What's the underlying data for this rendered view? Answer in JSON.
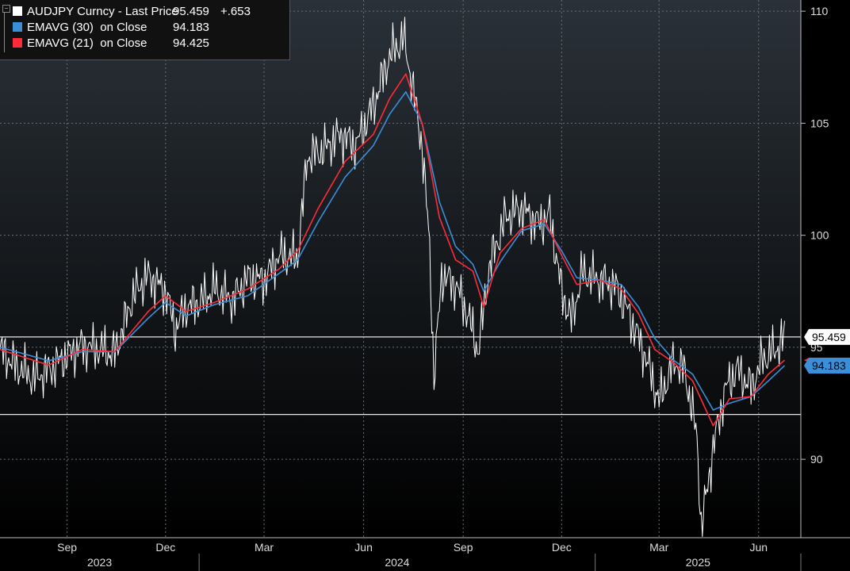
{
  "chart_data": {
    "type": "line",
    "series": [
      {
        "name": "AUDJPY Curncy - Last Price",
        "color": "#ffffff",
        "value_label": "95.459",
        "change_label": "+.653",
        "points": [
          [
            "2023-07-01",
            94.9
          ],
          [
            "2023-07-15",
            94.2
          ],
          [
            "2023-08-01",
            93.6
          ],
          [
            "2023-08-15",
            94.0
          ],
          [
            "2023-09-01",
            94.6
          ],
          [
            "2023-09-15",
            95.1
          ],
          [
            "2023-10-01",
            94.9
          ],
          [
            "2023-10-15",
            94.7
          ],
          [
            "2023-11-01",
            97.3
          ],
          [
            "2023-11-15",
            98.2
          ],
          [
            "2023-12-01",
            97.5
          ],
          [
            "2023-12-10",
            95.8
          ],
          [
            "2023-12-20",
            96.8
          ],
          [
            "2024-01-01",
            97.0
          ],
          [
            "2024-01-15",
            97.6
          ],
          [
            "2024-02-01",
            97.1
          ],
          [
            "2024-02-15",
            98.1
          ],
          [
            "2024-03-01",
            98.0
          ],
          [
            "2024-03-15",
            99.1
          ],
          [
            "2024-04-01",
            99.0
          ],
          [
            "2024-04-10",
            103.5
          ],
          [
            "2024-04-25",
            103.8
          ],
          [
            "2024-05-10",
            104.5
          ],
          [
            "2024-05-25",
            104.0
          ],
          [
            "2024-06-10",
            105.8
          ],
          [
            "2024-06-25",
            108.0
          ],
          [
            "2024-07-08",
            108.8
          ],
          [
            "2024-07-15",
            107.0
          ],
          [
            "2024-07-25",
            104.0
          ],
          [
            "2024-08-01",
            99.5
          ],
          [
            "2024-08-05",
            93.5
          ],
          [
            "2024-08-12",
            98.2
          ],
          [
            "2024-08-25",
            97.8
          ],
          [
            "2024-09-05",
            96.5
          ],
          [
            "2024-09-15",
            94.8
          ],
          [
            "2024-09-25",
            98.6
          ],
          [
            "2024-10-10",
            100.8
          ],
          [
            "2024-10-25",
            101.2
          ],
          [
            "2024-11-10",
            100.5
          ],
          [
            "2024-11-20",
            100.9
          ],
          [
            "2024-12-01",
            97.5
          ],
          [
            "2024-12-10",
            96.2
          ],
          [
            "2024-12-20",
            98.3
          ],
          [
            "2025-01-05",
            98.0
          ],
          [
            "2025-01-20",
            97.7
          ],
          [
            "2025-02-01",
            96.5
          ],
          [
            "2025-02-15",
            94.8
          ],
          [
            "2025-03-01",
            92.6
          ],
          [
            "2025-03-15",
            94.4
          ],
          [
            "2025-03-25",
            93.9
          ],
          [
            "2025-04-05",
            91.0
          ],
          [
            "2025-04-09",
            86.9
          ],
          [
            "2025-04-20",
            90.5
          ],
          [
            "2025-05-01",
            93.1
          ],
          [
            "2025-05-12",
            94.0
          ],
          [
            "2025-05-25",
            93.2
          ],
          [
            "2025-06-05",
            94.5
          ],
          [
            "2025-06-15",
            94.8
          ],
          [
            "2025-06-25",
            95.459
          ]
        ]
      },
      {
        "name": "EMAVG (30)  on Close",
        "color": "#3a8fd8",
        "value_label": "94.183",
        "points": [
          [
            "2023-07-01",
            95.0
          ],
          [
            "2023-08-15",
            94.4
          ],
          [
            "2023-09-15",
            94.8
          ],
          [
            "2023-10-15",
            94.8
          ],
          [
            "2023-11-15",
            96.3
          ],
          [
            "2023-12-01",
            97.0
          ],
          [
            "2023-12-20",
            96.4
          ],
          [
            "2024-01-15",
            96.9
          ],
          [
            "2024-02-15",
            97.3
          ],
          [
            "2024-03-15",
            98.3
          ],
          [
            "2024-04-01",
            98.9
          ],
          [
            "2024-04-20",
            100.6
          ],
          [
            "2024-05-15",
            102.6
          ],
          [
            "2024-06-10",
            104.0
          ],
          [
            "2024-06-25",
            105.4
          ],
          [
            "2024-07-10",
            106.4
          ],
          [
            "2024-07-25",
            105.0
          ],
          [
            "2024-08-10",
            101.5
          ],
          [
            "2024-08-25",
            99.5
          ],
          [
            "2024-09-10",
            98.7
          ],
          [
            "2024-09-20",
            97.5
          ],
          [
            "2024-10-05",
            98.8
          ],
          [
            "2024-10-25",
            100.2
          ],
          [
            "2024-11-15",
            100.5
          ],
          [
            "2024-12-01",
            99.3
          ],
          [
            "2024-12-15",
            98.1
          ],
          [
            "2025-01-05",
            98.0
          ],
          [
            "2025-01-25",
            97.8
          ],
          [
            "2025-02-10",
            96.8
          ],
          [
            "2025-02-25",
            95.4
          ],
          [
            "2025-03-15",
            94.4
          ],
          [
            "2025-04-01",
            93.8
          ],
          [
            "2025-04-20",
            92.2
          ],
          [
            "2025-05-05",
            92.5
          ],
          [
            "2025-05-25",
            92.8
          ],
          [
            "2025-06-10",
            93.5
          ],
          [
            "2025-06-25",
            94.183
          ]
        ]
      },
      {
        "name": "EMAVG (21)  on Close",
        "color": "#ff2b3a",
        "value_label": "94.425",
        "points": [
          [
            "2023-07-01",
            94.9
          ],
          [
            "2023-08-15",
            94.2
          ],
          [
            "2023-09-15",
            94.9
          ],
          [
            "2023-10-15",
            94.8
          ],
          [
            "2023-11-15",
            96.6
          ],
          [
            "2023-12-01",
            97.3
          ],
          [
            "2023-12-20",
            96.6
          ],
          [
            "2024-01-15",
            97.0
          ],
          [
            "2024-02-15",
            97.6
          ],
          [
            "2024-03-15",
            98.5
          ],
          [
            "2024-04-01",
            99.3
          ],
          [
            "2024-04-20",
            101.2
          ],
          [
            "2024-05-15",
            103.3
          ],
          [
            "2024-06-10",
            104.5
          ],
          [
            "2024-06-25",
            106.1
          ],
          [
            "2024-07-10",
            107.2
          ],
          [
            "2024-07-25",
            105.0
          ],
          [
            "2024-08-10",
            100.8
          ],
          [
            "2024-08-25",
            98.9
          ],
          [
            "2024-09-10",
            98.4
          ],
          [
            "2024-09-20",
            96.8
          ],
          [
            "2024-10-05",
            99.2
          ],
          [
            "2024-10-25",
            100.3
          ],
          [
            "2024-11-15",
            100.7
          ],
          [
            "2024-12-01",
            99.1
          ],
          [
            "2024-12-15",
            97.8
          ],
          [
            "2025-01-05",
            98.0
          ],
          [
            "2025-01-25",
            97.6
          ],
          [
            "2025-02-10",
            96.5
          ],
          [
            "2025-02-25",
            94.9
          ],
          [
            "2025-03-15",
            94.3
          ],
          [
            "2025-04-01",
            93.5
          ],
          [
            "2025-04-20",
            91.5
          ],
          [
            "2025-05-05",
            92.7
          ],
          [
            "2025-05-25",
            92.8
          ],
          [
            "2025-06-10",
            93.8
          ],
          [
            "2025-06-25",
            94.425
          ]
        ]
      }
    ],
    "xlim": [
      "2023-07-01",
      "2025-07-10"
    ],
    "ylim": [
      86.5,
      110.5
    ],
    "yticks": [
      90,
      95,
      100,
      105,
      110
    ],
    "ytick_labels": [
      "90",
      "95",
      "100",
      "105",
      "110"
    ],
    "xticks": [
      {
        "date": "2023-09-01",
        "label": "Sep"
      },
      {
        "date": "2023-12-01",
        "label": "Dec"
      },
      {
        "date": "2024-03-01",
        "label": "Mar"
      },
      {
        "date": "2024-06-01",
        "label": "Jun"
      },
      {
        "date": "2024-09-01",
        "label": "Sep"
      },
      {
        "date": "2024-12-01",
        "label": "Dec"
      },
      {
        "date": "2025-03-01",
        "label": "Mar"
      },
      {
        "date": "2025-06-01",
        "label": "Jun"
      }
    ],
    "years": [
      {
        "label": "2023",
        "from": "2023-07-01",
        "to": "2024-01-01"
      },
      {
        "label": "2024",
        "from": "2024-01-01",
        "to": "2025-01-01"
      },
      {
        "label": "2025",
        "from": "2025-01-01",
        "to": "2025-07-10"
      }
    ],
    "horizontal_lines": [
      95.459,
      92.0
    ],
    "last_value_tags": [
      {
        "value": 95.459,
        "label": "95.459",
        "bg": "#ffffff",
        "fg": "#000000"
      },
      {
        "value": 94.425,
        "label": "",
        "bg": "#ff2b3a",
        "fg": "#000000"
      },
      {
        "value": 94.183,
        "label": "94.183",
        "bg": "#3a8fd8",
        "fg": "#000000"
      }
    ],
    "grid": true,
    "legend": "top-left"
  }
}
